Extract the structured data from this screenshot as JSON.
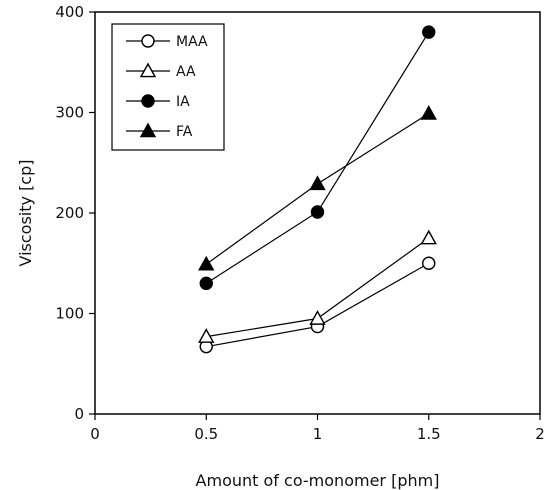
{
  "chart_data": {
    "type": "line",
    "title": "",
    "xlabel": "Amount of co-monomer  [phm]",
    "ylabel": "Viscosity [cp]",
    "xlim": [
      0,
      2
    ],
    "ylim": [
      0,
      400
    ],
    "xticks": [
      0,
      0.5,
      1,
      1.5,
      2
    ],
    "yticks": [
      0,
      100,
      200,
      300,
      400
    ],
    "xtick_labels": [
      "0",
      "0.5",
      "1",
      "1.5",
      "2"
    ],
    "ytick_labels": [
      "0",
      "100",
      "200",
      "300",
      "400"
    ],
    "grid": false,
    "legend_position": "top-left",
    "x": [
      0.5,
      1,
      1.5
    ],
    "series": [
      {
        "name": "MAA",
        "marker": "circle-open",
        "values": [
          67,
          87,
          150
        ]
      },
      {
        "name": "AA",
        "marker": "triangle-open",
        "values": [
          77,
          95,
          175
        ]
      },
      {
        "name": "IA",
        "marker": "circle-filled",
        "values": [
          130,
          201,
          380
        ]
      },
      {
        "name": "FA",
        "marker": "triangle-filled",
        "values": [
          149,
          229,
          299
        ]
      }
    ],
    "colors": {
      "line": "#000000",
      "marker": "#000000",
      "background": "#ffffff"
    }
  }
}
